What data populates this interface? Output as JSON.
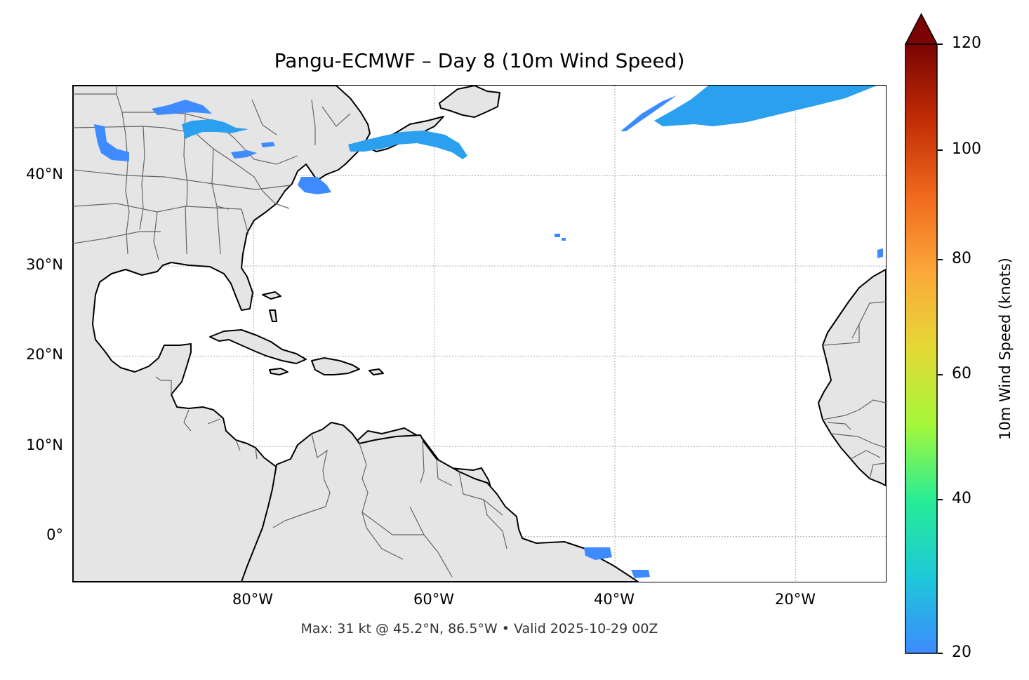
{
  "title": "Pangu-ECMWF – Day 8 (10m Wind Speed)",
  "footer": "Max: 31 kt @ 45.2°N, 86.5°W • Valid 2025-10-29 00Z",
  "map": {
    "extent": {
      "lon_min": -100,
      "lon_max": -10,
      "lat_min": -5,
      "lat_max": 50
    },
    "land_color": "#e5e5e5",
    "ocean_color": "#ffffff",
    "coastline_color": "#000000",
    "border_color": "#666666",
    "gridlines": true,
    "lat_ticks": [
      {
        "value": 40,
        "label": "40°N"
      },
      {
        "value": 30,
        "label": "30°N"
      },
      {
        "value": 20,
        "label": "20°N"
      },
      {
        "value": 10,
        "label": "10°N"
      },
      {
        "value": 0,
        "label": "0°"
      }
    ],
    "lon_ticks": [
      {
        "value": -80,
        "label": "80°W"
      },
      {
        "value": -60,
        "label": "60°W"
      },
      {
        "value": -40,
        "label": "40°W"
      },
      {
        "value": -20,
        "label": "20°W"
      }
    ]
  },
  "colorbar": {
    "label": "10m Wind Speed (knots)",
    "min": 20,
    "max": 120,
    "ticks": [
      {
        "value": 120,
        "label": "120"
      },
      {
        "value": 100,
        "label": "100"
      },
      {
        "value": 80,
        "label": "80"
      },
      {
        "value": 60,
        "label": "60"
      },
      {
        "value": 40,
        "label": "40"
      },
      {
        "value": 20,
        "label": "20"
      }
    ],
    "extend": "max",
    "colors": [
      "#3d8bff",
      "#1dc8d8",
      "#27ec96",
      "#a5f83a",
      "#e4d936",
      "#fca83a",
      "#f06a1e",
      "#c22d05",
      "#7a0403"
    ]
  }
}
